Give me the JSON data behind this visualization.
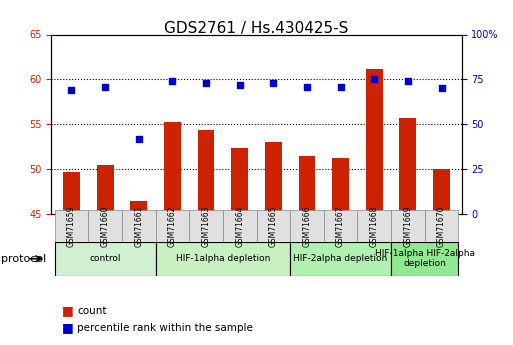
{
  "title": "GDS2761 / Hs.430425-S",
  "samples": [
    "GSM71659",
    "GSM71660",
    "GSM71661",
    "GSM71662",
    "GSM71663",
    "GSM71664",
    "GSM71665",
    "GSM71666",
    "GSM71667",
    "GSM71668",
    "GSM71669",
    "GSM71670"
  ],
  "count_values": [
    49.7,
    50.4,
    46.4,
    55.3,
    54.4,
    52.4,
    53.0,
    51.5,
    51.2,
    61.2,
    55.7,
    50.0
  ],
  "percentile_values": [
    69,
    71,
    42,
    74,
    73,
    72,
    73,
    71,
    71,
    75,
    74,
    70
  ],
  "ylim_left": [
    45,
    65
  ],
  "ylim_right": [
    0,
    100
  ],
  "yticks_left": [
    45,
    50,
    55,
    60,
    65
  ],
  "ytick_labels_left": [
    "45",
    "50",
    "55",
    "60",
    "65"
  ],
  "yticks_right_vals": [
    0,
    25,
    50,
    75,
    100
  ],
  "ytick_labels_right": [
    "0",
    "25",
    "50",
    "75",
    "100%"
  ],
  "bar_color": "#CC2200",
  "dot_color": "#0000CC",
  "protocol_groups": [
    {
      "label": "control",
      "start": 0,
      "end": 2,
      "color": "#d0f0d0"
    },
    {
      "label": "HIF-1alpha depletion",
      "start": 3,
      "end": 6,
      "color": "#c8f0c0"
    },
    {
      "label": "HIF-2alpha depletion",
      "start": 7,
      "end": 9,
      "color": "#b0f0b0"
    },
    {
      "label": "HIF-1alpha HIF-2alpha\ndepletion",
      "start": 10,
      "end": 11,
      "color": "#90e890"
    }
  ],
  "legend_count_label": "count",
  "legend_percentile_label": "percentile rank within the sample",
  "xlabel_protocol": "protocol",
  "grid_yticks": [
    50,
    55,
    60
  ],
  "title_fontsize": 11,
  "tick_label_fontsize": 7
}
